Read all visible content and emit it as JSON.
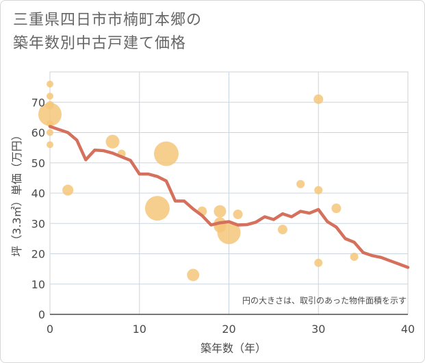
{
  "title_line1": "三重県四日市市楠町本郷の",
  "title_line2": "築年数別中古戸建て価格",
  "chart_data": {
    "type": "scatter",
    "xlabel": "築年数（年）",
    "ylabel": "坪（3.3㎡）単価（万円）",
    "xlim": [
      0,
      40
    ],
    "ylim": [
      0,
      80
    ],
    "xticks": [
      0,
      10,
      20,
      30,
      40
    ],
    "yticks": [
      0,
      10,
      20,
      30,
      40,
      50,
      60,
      70
    ],
    "note": "円の大きさは、取引のあった物件面積を示す",
    "bubble_color": "#f5c77a",
    "line_color": "#d4705b",
    "points": [
      {
        "x": 0,
        "y": 76,
        "r": 5
      },
      {
        "x": 0,
        "y": 72,
        "r": 5
      },
      {
        "x": 0,
        "y": 69,
        "r": 6
      },
      {
        "x": 0,
        "y": 66,
        "r": 17
      },
      {
        "x": 0,
        "y": 63,
        "r": 5
      },
      {
        "x": 0,
        "y": 60,
        "r": 5
      },
      {
        "x": 0,
        "y": 56,
        "r": 5
      },
      {
        "x": 2,
        "y": 41,
        "r": 8
      },
      {
        "x": 7,
        "y": 57,
        "r": 10
      },
      {
        "x": 8,
        "y": 53,
        "r": 6
      },
      {
        "x": 12,
        "y": 35,
        "r": 18
      },
      {
        "x": 13,
        "y": 53,
        "r": 18
      },
      {
        "x": 16,
        "y": 13,
        "r": 9
      },
      {
        "x": 17,
        "y": 34,
        "r": 7
      },
      {
        "x": 19,
        "y": 34,
        "r": 9
      },
      {
        "x": 19,
        "y": 30,
        "r": 9
      },
      {
        "x": 19,
        "y": 29,
        "r": 9
      },
      {
        "x": 20,
        "y": 27,
        "r": 17
      },
      {
        "x": 21,
        "y": 33,
        "r": 7
      },
      {
        "x": 26,
        "y": 28,
        "r": 7
      },
      {
        "x": 28,
        "y": 43,
        "r": 6
      },
      {
        "x": 30,
        "y": 71,
        "r": 7
      },
      {
        "x": 30,
        "y": 41,
        "r": 6
      },
      {
        "x": 30,
        "y": 17,
        "r": 6
      },
      {
        "x": 32,
        "y": 35,
        "r": 7
      },
      {
        "x": 34,
        "y": 19,
        "r": 6
      }
    ],
    "trend": {
      "x": [
        0,
        1,
        2,
        3,
        4,
        5,
        6,
        7,
        8,
        9,
        10,
        11,
        12,
        13,
        14,
        15,
        16,
        17,
        18,
        19,
        20,
        21,
        22,
        23,
        24,
        25,
        26,
        27,
        28,
        29,
        30,
        31,
        32,
        33,
        34,
        35,
        36,
        37,
        38,
        39,
        40
      ],
      "y": [
        62,
        61,
        60,
        57.5,
        51,
        54.2,
        54,
        53.2,
        52,
        50.8,
        46.3,
        46.3,
        45.5,
        44,
        37.4,
        37.4,
        34.8,
        32.6,
        29.5,
        30.2,
        30.6,
        29.5,
        29.6,
        30.4,
        32.2,
        31.3,
        33.2,
        32.2,
        34,
        33.4,
        34.6,
        30.6,
        28.8,
        25,
        23.8,
        20.4,
        19.4,
        18.8,
        17.7,
        16.6,
        15.5
      ]
    }
  }
}
